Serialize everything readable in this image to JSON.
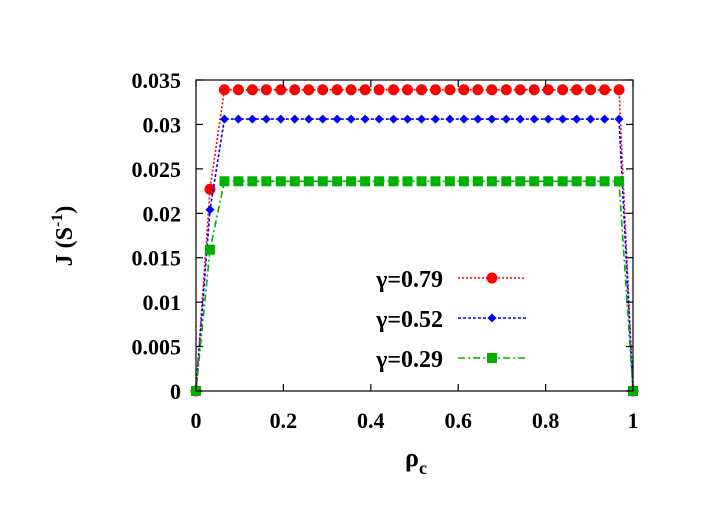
{
  "chart_data": {
    "type": "line",
    "xlabel": "ρ",
    "xlabel_sub": "c",
    "ylabel": "J (S",
    "ylabel_sup": "-1",
    "ylabel_close": ")",
    "xlim": [
      0,
      1
    ],
    "ylim": [
      0,
      0.035
    ],
    "x_ticks": [
      "0",
      "0.2",
      "0.4",
      "0.6",
      "0.8",
      "1"
    ],
    "y_ticks": [
      "0",
      "0.005",
      "0.01",
      "0.015",
      "0.02",
      "0.025",
      "0.03",
      "0.035"
    ],
    "legend_position": "center-right",
    "grid": false,
    "series": [
      {
        "name": "γ=0.79",
        "color": "#ff0000",
        "marker": "circle",
        "x": [
          0,
          0.032,
          0.065,
          0.097,
          0.129,
          0.161,
          0.194,
          0.226,
          0.258,
          0.29,
          0.323,
          0.355,
          0.387,
          0.419,
          0.452,
          0.484,
          0.516,
          0.548,
          0.581,
          0.613,
          0.645,
          0.677,
          0.71,
          0.742,
          0.774,
          0.806,
          0.839,
          0.871,
          0.903,
          0.935,
          0.968,
          1.0
        ],
        "values": [
          0,
          0.0227,
          0.0339,
          0.0339,
          0.0339,
          0.0339,
          0.0339,
          0.0339,
          0.0339,
          0.0339,
          0.0339,
          0.0339,
          0.0339,
          0.0339,
          0.0339,
          0.0339,
          0.0339,
          0.0339,
          0.0339,
          0.0339,
          0.0339,
          0.0339,
          0.0339,
          0.0339,
          0.0339,
          0.0339,
          0.0339,
          0.0339,
          0.0339,
          0.0339,
          0.0339,
          0
        ]
      },
      {
        "name": "γ=0.52",
        "color": "#0000ff",
        "marker": "diamond",
        "x": [
          0,
          0.032,
          0.065,
          0.097,
          0.129,
          0.161,
          0.194,
          0.226,
          0.258,
          0.29,
          0.323,
          0.355,
          0.387,
          0.419,
          0.452,
          0.484,
          0.516,
          0.548,
          0.581,
          0.613,
          0.645,
          0.677,
          0.71,
          0.742,
          0.774,
          0.806,
          0.839,
          0.871,
          0.903,
          0.935,
          0.968,
          1.0
        ],
        "values": [
          0,
          0.0204,
          0.0306,
          0.0306,
          0.0306,
          0.0306,
          0.0306,
          0.0306,
          0.0306,
          0.0306,
          0.0306,
          0.0306,
          0.0306,
          0.0306,
          0.0306,
          0.0306,
          0.0306,
          0.0306,
          0.0306,
          0.0306,
          0.0306,
          0.0306,
          0.0306,
          0.0306,
          0.0306,
          0.0306,
          0.0306,
          0.0306,
          0.0306,
          0.0306,
          0.0306,
          0
        ]
      },
      {
        "name": "γ=0.29",
        "color": "#00b000",
        "marker": "square",
        "x": [
          0,
          0.032,
          0.065,
          0.097,
          0.129,
          0.161,
          0.194,
          0.226,
          0.258,
          0.29,
          0.323,
          0.355,
          0.387,
          0.419,
          0.452,
          0.484,
          0.516,
          0.548,
          0.581,
          0.613,
          0.645,
          0.677,
          0.71,
          0.742,
          0.774,
          0.806,
          0.839,
          0.871,
          0.903,
          0.935,
          0.968,
          1.0
        ],
        "values": [
          0,
          0.0159,
          0.0236,
          0.0236,
          0.0236,
          0.0236,
          0.0236,
          0.0236,
          0.0236,
          0.0236,
          0.0236,
          0.0236,
          0.0236,
          0.0236,
          0.0236,
          0.0236,
          0.0236,
          0.0236,
          0.0236,
          0.0236,
          0.0236,
          0.0236,
          0.0236,
          0.0236,
          0.0236,
          0.0236,
          0.0236,
          0.0236,
          0.0236,
          0.0236,
          0.0236,
          0
        ]
      }
    ]
  }
}
